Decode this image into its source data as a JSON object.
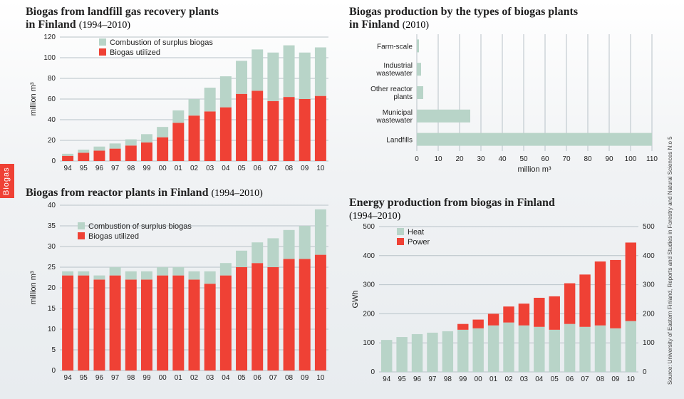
{
  "tab_label": "Biogas",
  "source_text": "Source:   University of Eastern Finland, Reports and Studies in Forestry and Natural Sciences N:o 5",
  "colors": {
    "utilized": "#ef4135",
    "surplus": "#b8d4c8",
    "grid": "#b8c2c8",
    "text": "#222222"
  },
  "years": [
    "94",
    "95",
    "96",
    "97",
    "98",
    "99",
    "00",
    "01",
    "02",
    "03",
    "04",
    "05",
    "06",
    "07",
    "08",
    "09",
    "10"
  ],
  "chart1": {
    "title": "Biogas from landfill gas recovery plants",
    "subtitle": "in Finland ",
    "range": "(1994–2010)",
    "ylabel": "million m³",
    "ymax": 120,
    "ytick": 20,
    "legend": [
      "Combustion of surplus biogas",
      "Biogas utilized"
    ],
    "utilized": [
      5,
      8,
      10,
      12,
      15,
      18,
      23,
      37,
      44,
      48,
      52,
      65,
      68,
      58,
      62,
      60,
      63
    ],
    "surplus": [
      2,
      3,
      4,
      5,
      6,
      8,
      10,
      12,
      16,
      23,
      30,
      32,
      40,
      47,
      50,
      45,
      47
    ]
  },
  "chart2": {
    "title": "Biogas from reactor plants in Finland ",
    "range": "(1994–2010)",
    "ylabel": "million m³",
    "ymax": 40,
    "ytick": 5,
    "legend": [
      "Combustion of surplus biogas",
      "Biogas utilized"
    ],
    "utilized": [
      23,
      23,
      22,
      23,
      22,
      22,
      23,
      23,
      22,
      21,
      23,
      25,
      26,
      25,
      27,
      27,
      28
    ],
    "surplus": [
      1,
      1,
      1,
      2,
      2,
      2,
      2,
      2,
      2,
      3,
      3,
      4,
      5,
      7,
      7,
      8,
      11
    ]
  },
  "chart3": {
    "title": "Biogas production by the types of biogas plants",
    "subtitle": "in Finland ",
    "range": "(2010)",
    "xlabel": "million m³",
    "xmax": 110,
    "xtick": 10,
    "categories": [
      "Farm-scale",
      "Industrial wastewater",
      "Other reactor plants",
      "Municipal wastewater",
      "Landfills"
    ],
    "values": [
      1,
      2,
      3,
      25,
      110
    ]
  },
  "chart4": {
    "title": "Energy production from biogas in Finland",
    "range": "(1994–2010)",
    "ylabel": "GWh",
    "ymax": 500,
    "ytick": 100,
    "legend": [
      "Heat",
      "Power"
    ],
    "heat": [
      110,
      120,
      130,
      135,
      140,
      145,
      150,
      160,
      170,
      160,
      155,
      145,
      165,
      155,
      160,
      150,
      175
    ],
    "power": [
      0,
      0,
      0,
      0,
      0,
      20,
      30,
      40,
      55,
      75,
      100,
      115,
      140,
      180,
      220,
      235,
      270
    ]
  }
}
